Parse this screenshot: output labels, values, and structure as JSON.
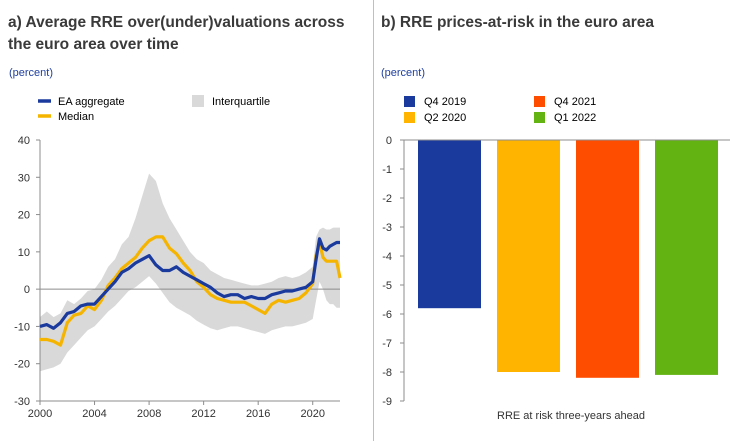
{
  "panel_a": {
    "title_line1": "a) Average RRE over(under)valuations across",
    "title_line2": "the euro area over time",
    "unit": "(percent)"
  },
  "panel_b": {
    "title": "b) RRE prices-at-risk in the euro area",
    "unit": "(percent)"
  },
  "chart_data": [
    {
      "type": "line",
      "legend": [
        {
          "name": "EA aggregate",
          "color": "#1a3a9e"
        },
        {
          "name": "Median",
          "color": "#f5b400"
        },
        {
          "name": "Interquartile",
          "color": "#d9d9d9"
        }
      ],
      "x_ticks": [
        "2000",
        "2004",
        "2008",
        "2012",
        "2016",
        "2020"
      ],
      "ylim": [
        -30,
        40
      ],
      "y_ticks": [
        40,
        30,
        20,
        10,
        0,
        -10,
        -20,
        -30
      ],
      "x": [
        2000,
        2000.5,
        2001,
        2001.5,
        2002,
        2002.5,
        2003,
        2003.5,
        2004,
        2004.5,
        2005,
        2005.5,
        2006,
        2006.5,
        2007,
        2007.5,
        2008,
        2008.5,
        2009,
        2009.5,
        2010,
        2010.5,
        2011,
        2011.5,
        2012,
        2012.5,
        2013,
        2013.5,
        2014,
        2014.5,
        2015,
        2015.5,
        2016,
        2016.5,
        2017,
        2017.5,
        2018,
        2018.5,
        2019,
        2019.5,
        2020,
        2020.25,
        2020.5,
        2020.75,
        2021,
        2021.25,
        2021.5,
        2021.75,
        2022
      ],
      "series": [
        {
          "name": "EA aggregate",
          "color": "#1a3a9e",
          "values": [
            -10,
            -9.5,
            -10.5,
            -9,
            -6.5,
            -6,
            -4.5,
            -4,
            -4,
            -2,
            0,
            2,
            4.5,
            5.5,
            7,
            8,
            9,
            6.5,
            5,
            5,
            6,
            4.5,
            3.5,
            2.5,
            1.5,
            0.5,
            -1,
            -2,
            -1.5,
            -1.5,
            -2.5,
            -2,
            -2.5,
            -2.5,
            -1.5,
            -1,
            -0.5,
            -0.5,
            0,
            0.5,
            2,
            8,
            13.5,
            11,
            10.5,
            11.5,
            12,
            12.5,
            12.5
          ]
        },
        {
          "name": "Median",
          "color": "#f5b400",
          "values": [
            -13.5,
            -13.5,
            -14,
            -15,
            -9,
            -7,
            -6.5,
            -4.5,
            -5.5,
            -3,
            1,
            3,
            5.5,
            7,
            8.5,
            11,
            13,
            14,
            14,
            11,
            9.5,
            7,
            5,
            2,
            0.5,
            -1.5,
            -2.5,
            -3,
            -3.5,
            -3.5,
            -3.5,
            -4.5,
            -5.5,
            -6.5,
            -4,
            -3,
            -3.5,
            -3,
            -2.5,
            -1,
            1.5,
            9,
            12.5,
            8.5,
            7.5,
            7.5,
            7.5,
            7.5,
            3
          ]
        },
        {
          "name": "Interquartile",
          "color": "#d9d9d9",
          "upper": [
            -7.5,
            -6,
            -7.5,
            -6.5,
            -3,
            -4,
            -2.5,
            -0.5,
            0,
            2.5,
            6,
            8,
            12,
            14,
            19,
            25,
            31,
            29,
            23,
            19,
            16,
            13,
            10,
            8,
            7,
            5,
            4,
            3,
            2.5,
            2,
            1.5,
            1,
            1,
            1.5,
            2,
            3,
            3.5,
            3,
            3.5,
            4.5,
            6,
            14,
            16,
            16.5,
            16,
            16,
            16.5,
            16.5,
            16.5
          ],
          "lower": [
            -22,
            -21.5,
            -21,
            -20,
            -17,
            -15,
            -13,
            -11,
            -10,
            -8,
            -6,
            -4.5,
            -2.5,
            -0.5,
            0.5,
            2,
            3.5,
            1.5,
            -1,
            -3.5,
            -5,
            -6,
            -7,
            -8.5,
            -9.5,
            -10.5,
            -11,
            -10.5,
            -10,
            -10,
            -10.5,
            -11,
            -11.5,
            -12,
            -11,
            -10.5,
            -10,
            -10,
            -9.5,
            -9,
            -8,
            -3,
            2,
            0,
            -3,
            -4,
            -4,
            -5,
            -5
          ]
        }
      ]
    },
    {
      "type": "bar",
      "categories": [
        "RRE at risk three-years ahead"
      ],
      "ylim": [
        -9,
        0
      ],
      "y_ticks": [
        0,
        -1,
        -2,
        -3,
        -4,
        -5,
        -6,
        -7,
        -8,
        -9
      ],
      "series": [
        {
          "name": "Q4 2019",
          "color": "#1a3a9e",
          "values": [
            -5.8
          ]
        },
        {
          "name": "Q2 2020",
          "color": "#ffb400",
          "values": [
            -8.0
          ]
        },
        {
          "name": "Q4 2021",
          "color": "#ff4d00",
          "values": [
            -8.2
          ]
        },
        {
          "name": "Q1 2022",
          "color": "#63b312",
          "values": [
            -8.1
          ]
        }
      ]
    }
  ]
}
